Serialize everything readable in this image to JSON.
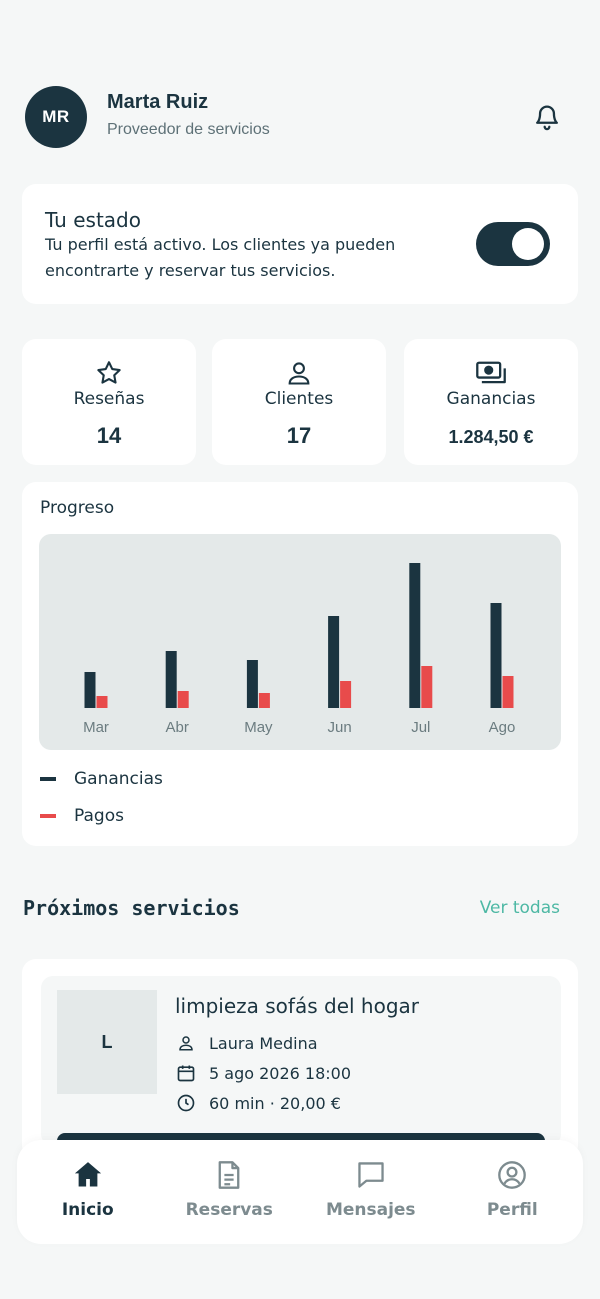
{
  "header": {
    "avatar_initials": "MR",
    "name": "Marta Ruiz",
    "role": "Proveedor de servicios"
  },
  "status": {
    "title": "Tu estado",
    "description": "Tu perfil está activo. Los clientes ya pueden encontrarte y reservar tus servicios.",
    "active": true
  },
  "stats": [
    {
      "label": "Reseñas",
      "value": "14",
      "icon": "star-icon"
    },
    {
      "label": "Clientes",
      "value": "17",
      "icon": "person-icon"
    },
    {
      "label": "Ganancias",
      "value": "1.284,50 €",
      "icon": "cash-icon"
    }
  ],
  "chart_title": "Progreso",
  "chart_data": {
    "type": "bar",
    "categories": [
      "Mar",
      "Abr",
      "May",
      "Jun",
      "Jul",
      "Ago"
    ],
    "series": [
      {
        "name": "Ganancias",
        "color": "#1b3440",
        "values": [
          36,
          57,
          48,
          92,
          145,
          105
        ]
      },
      {
        "name": "Pagos",
        "color": "#e84b4b",
        "values": [
          12,
          17,
          15,
          27,
          42,
          32
        ]
      }
    ],
    "ylim": [
      0,
      160
    ],
    "grid": false,
    "legend": "bottom-left"
  },
  "upcoming": {
    "title": "Próximos servicios",
    "see_all": "Ver todas",
    "items": [
      {
        "thumb_letter": "L",
        "title": "limpieza sofás del hogar",
        "client": "Laura Medina",
        "date": "5 ago 2026 18:00",
        "duration_price": "60 min · 20,00 €"
      }
    ]
  },
  "nav": [
    {
      "label": "Inicio",
      "icon": "home-icon",
      "active": true
    },
    {
      "label": "Reservas",
      "icon": "document-icon",
      "active": false
    },
    {
      "label": "Mensajes",
      "icon": "chat-icon",
      "active": false
    },
    {
      "label": "Perfil",
      "icon": "profile-icon",
      "active": false
    }
  ],
  "colors": {
    "primary": "#1b3440",
    "accent": "#4db8a4",
    "payments": "#e84b4b"
  }
}
